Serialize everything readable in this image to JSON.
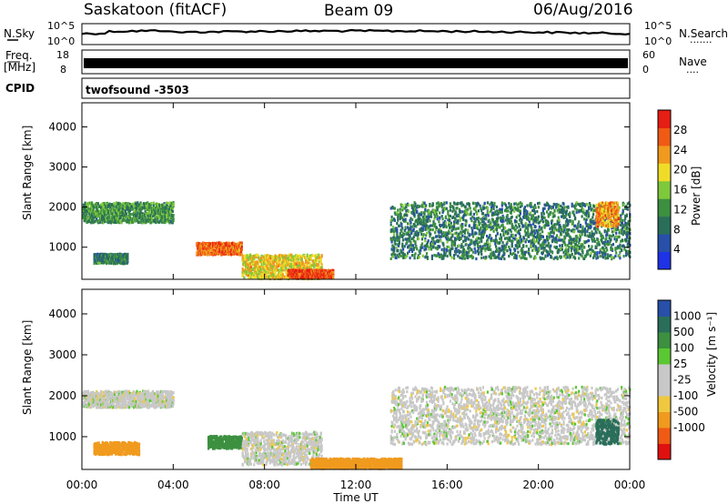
{
  "header": {
    "station": "Saskatoon (fitACF)",
    "beam": "Beam 09",
    "date": "06/Aug/2016"
  },
  "top_panels": {
    "nsky_label": "N.Sky",
    "nsearch_label": "N.Search",
    "nsearch_dots": "·······",
    "sky_ticks_left": [
      "10^5",
      "10^0"
    ],
    "sky_ticks_right": [
      "10^5",
      "10^0"
    ],
    "freq_label_top": "Freq.",
    "freq_label_unit": "[MHz]",
    "freq_ticks": [
      "18",
      "8"
    ],
    "nave_label": "Nave",
    "nave_dots": "····",
    "nave_ticks": [
      "60",
      "0"
    ],
    "cpid_label": "CPID",
    "cpid_value": "twofsound  -3503"
  },
  "colors": {
    "power_scale": [
      "#1e32e6",
      "#2850a8",
      "#2a6e5a",
      "#3c9040",
      "#7ec83c",
      "#f0dc28",
      "#f09a1e",
      "#f05a14",
      "#e61e14"
    ],
    "velocity_scale": [
      "#e01010",
      "#f05a14",
      "#f09a1e",
      "#f0c840",
      "#c8c8c8",
      "#c8c8c8",
      "#5ac832",
      "#3c9040",
      "#2a6e5a",
      "#2850a8"
    ]
  },
  "chart_data": [
    {
      "type": "heatmap",
      "name": "power",
      "ylabel": "Slant Range [km]",
      "xlabel": "Time UT",
      "ylim": [
        200,
        4600
      ],
      "xlim": [
        "00:00",
        "24:00"
      ],
      "x_ticks": [
        "00:00",
        "04:00",
        "08:00",
        "12:00",
        "16:00",
        "20:00",
        "00:00"
      ],
      "y_ticks": [
        1000,
        2000,
        3000,
        4000
      ],
      "colorbar": {
        "label": "Power [dB]",
        "ticks": [
          "4",
          "8",
          "12",
          "16",
          "20",
          "24",
          "28"
        ],
        "range": [
          0,
          32
        ]
      },
      "echo_regions": [
        {
          "t0": 0.0,
          "t1": 4.0,
          "r_center": 1850,
          "r_halfwidth": 250,
          "value_dB": 12
        },
        {
          "t0": 0.5,
          "t1": 2.0,
          "r_center": 700,
          "r_halfwidth": 120,
          "value_dB": 10
        },
        {
          "t0": 5.0,
          "t1": 7.0,
          "r_center": 950,
          "r_halfwidth": 150,
          "value_dB": 26
        },
        {
          "t0": 7.0,
          "t1": 10.5,
          "r_center": 500,
          "r_halfwidth": 300,
          "value_dB": 20
        },
        {
          "t0": 9.0,
          "t1": 11.0,
          "r_center": 320,
          "r_halfwidth": 100,
          "value_dB": 28
        },
        {
          "t0": 13.5,
          "t1": 24.0,
          "r_center": 1400,
          "r_halfwidth": 700,
          "value_dB": 10
        },
        {
          "t0": 22.5,
          "t1": 23.5,
          "r_center": 1800,
          "r_halfwidth": 300,
          "value_dB": 24
        }
      ]
    },
    {
      "type": "heatmap",
      "name": "velocity",
      "ylabel": "Slant Range [km]",
      "xlabel": "Time UT",
      "ylim": [
        200,
        4600
      ],
      "xlim": [
        "00:00",
        "24:00"
      ],
      "x_ticks": [
        "00:00",
        "04:00",
        "08:00",
        "12:00",
        "16:00",
        "20:00",
        "00:00"
      ],
      "y_ticks": [
        1000,
        2000,
        3000,
        4000
      ],
      "colorbar": {
        "label": "Velocity [m s⁻¹]",
        "ticks": [
          "1000",
          "500",
          "100",
          "25",
          "-25",
          "-100",
          "-500",
          "-1000"
        ]
      },
      "echo_regions": [
        {
          "t0": 0.0,
          "t1": 4.0,
          "r_center": 1900,
          "r_halfwidth": 200,
          "value_ms": 0
        },
        {
          "t0": 0.5,
          "t1": 2.5,
          "r_center": 700,
          "r_halfwidth": 150,
          "value_ms": -100
        },
        {
          "t0": 5.5,
          "t1": 7.0,
          "r_center": 850,
          "r_halfwidth": 150,
          "value_ms": 100
        },
        {
          "t0": 7.0,
          "t1": 10.5,
          "r_center": 700,
          "r_halfwidth": 400,
          "value_ms": 0
        },
        {
          "t0": 10.0,
          "t1": 14.0,
          "r_center": 330,
          "r_halfwidth": 120,
          "value_ms": -100
        },
        {
          "t0": 13.5,
          "t1": 24.0,
          "r_center": 1500,
          "r_halfwidth": 700,
          "value_ms": 0
        },
        {
          "t0": 22.5,
          "t1": 23.5,
          "r_center": 1100,
          "r_halfwidth": 300,
          "value_ms": 500
        }
      ]
    }
  ]
}
